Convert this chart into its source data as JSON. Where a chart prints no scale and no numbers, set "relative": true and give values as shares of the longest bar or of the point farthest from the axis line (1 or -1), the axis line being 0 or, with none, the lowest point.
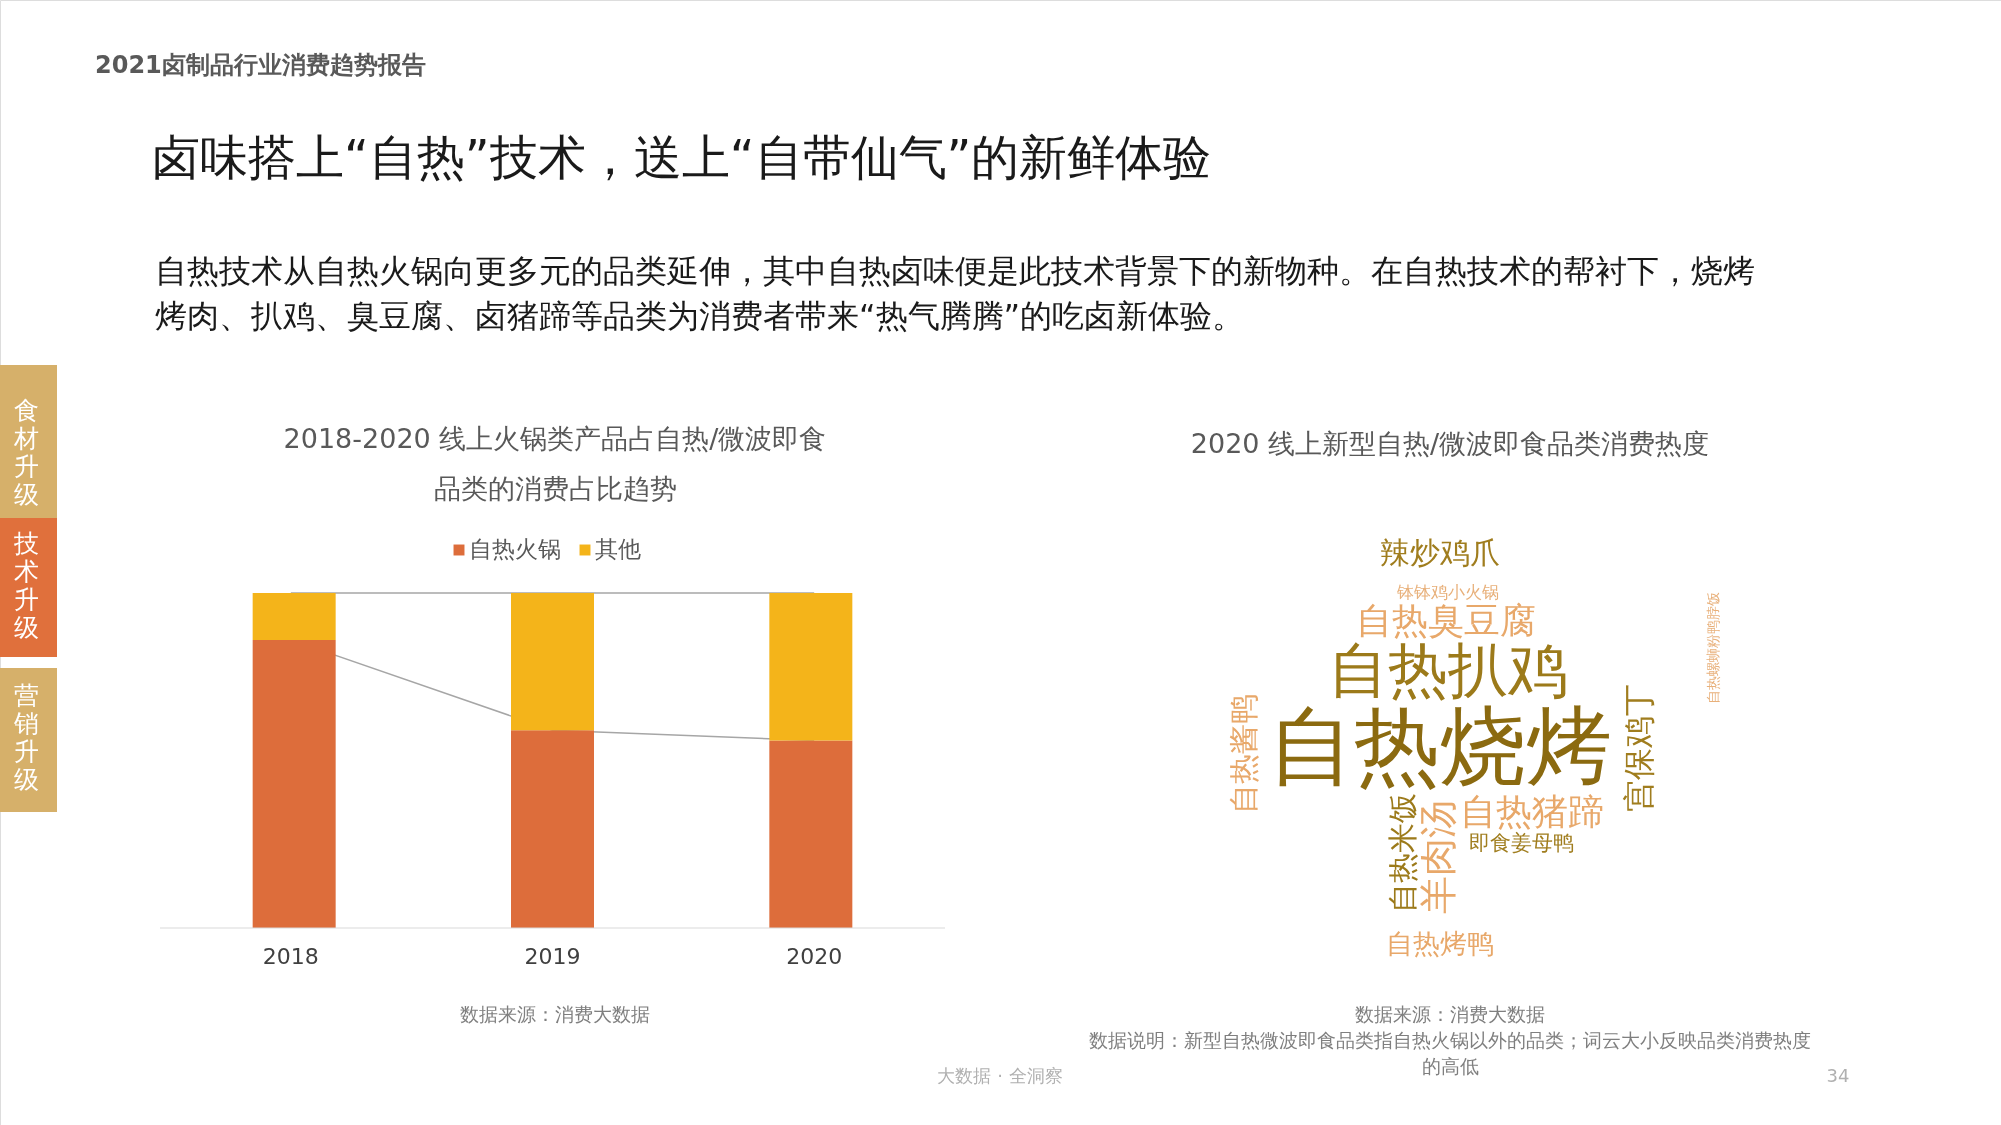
{
  "chart_data": [
    {
      "type": "other",
      "title": "卤味搭上“自热”技术，送上“自带仙气”的新鲜体验",
      "subtitle": "自热技术从自热火锅向更多元的品类延伸，其中自热卤味便是此技术背景下的新物种。在自热技术的帮衬下，烧烤烤肉、扒鸡、臭豆腐、卤猪蹄等品类为消费者带来“热气腾腾”的吃卤新体验。",
      "annotations": [
        "2021卤制品行业消费趋势报告",
        "食材升级",
        "技术升级",
        "营销升级",
        "大数据 · 全洞察",
        "34"
      ]
    },
    {
      "type": "bar",
      "stacked": true,
      "relative": true,
      "legend": "top",
      "title": "2018-2020 线上火锅类产品占自热/微波即食品类的消费占比趋势",
      "categories": [
        "2018",
        "2019",
        "2020"
      ],
      "series": [
        {
          "name": "自热火锅",
          "color": "#dd6d3b",
          "values": [
            0.86,
            0.59,
            0.56
          ]
        },
        {
          "name": "其他",
          "color": "#f4b41a",
          "values": [
            0.14,
            0.41,
            0.44
          ]
        }
      ],
      "annotations": [
        "数据来源：消费大数据"
      ]
    },
    {
      "type": "other",
      "title": "2020 线上新型自热/微波即食品类消费热度",
      "annotations": [
        "辣炒鸡爪",
        "钵钵鸡小火锅",
        "自热臭豆腐",
        "自热扒鸡",
        "自热烧烤",
        "自热酱鸭",
        "宫保鸡丁",
        "自热螺蛳粉鸭脖饭",
        "自热米饭",
        "羊肉汤",
        "自热猪蹄",
        "即食姜母鸭",
        "自热烤鸭",
        "数据来源：消费大数据",
        "数据说明：新型自热微波即食品类指自热火锅以外的品类；词云大小反映品类消费热度的高低"
      ]
    }
  ]
}
